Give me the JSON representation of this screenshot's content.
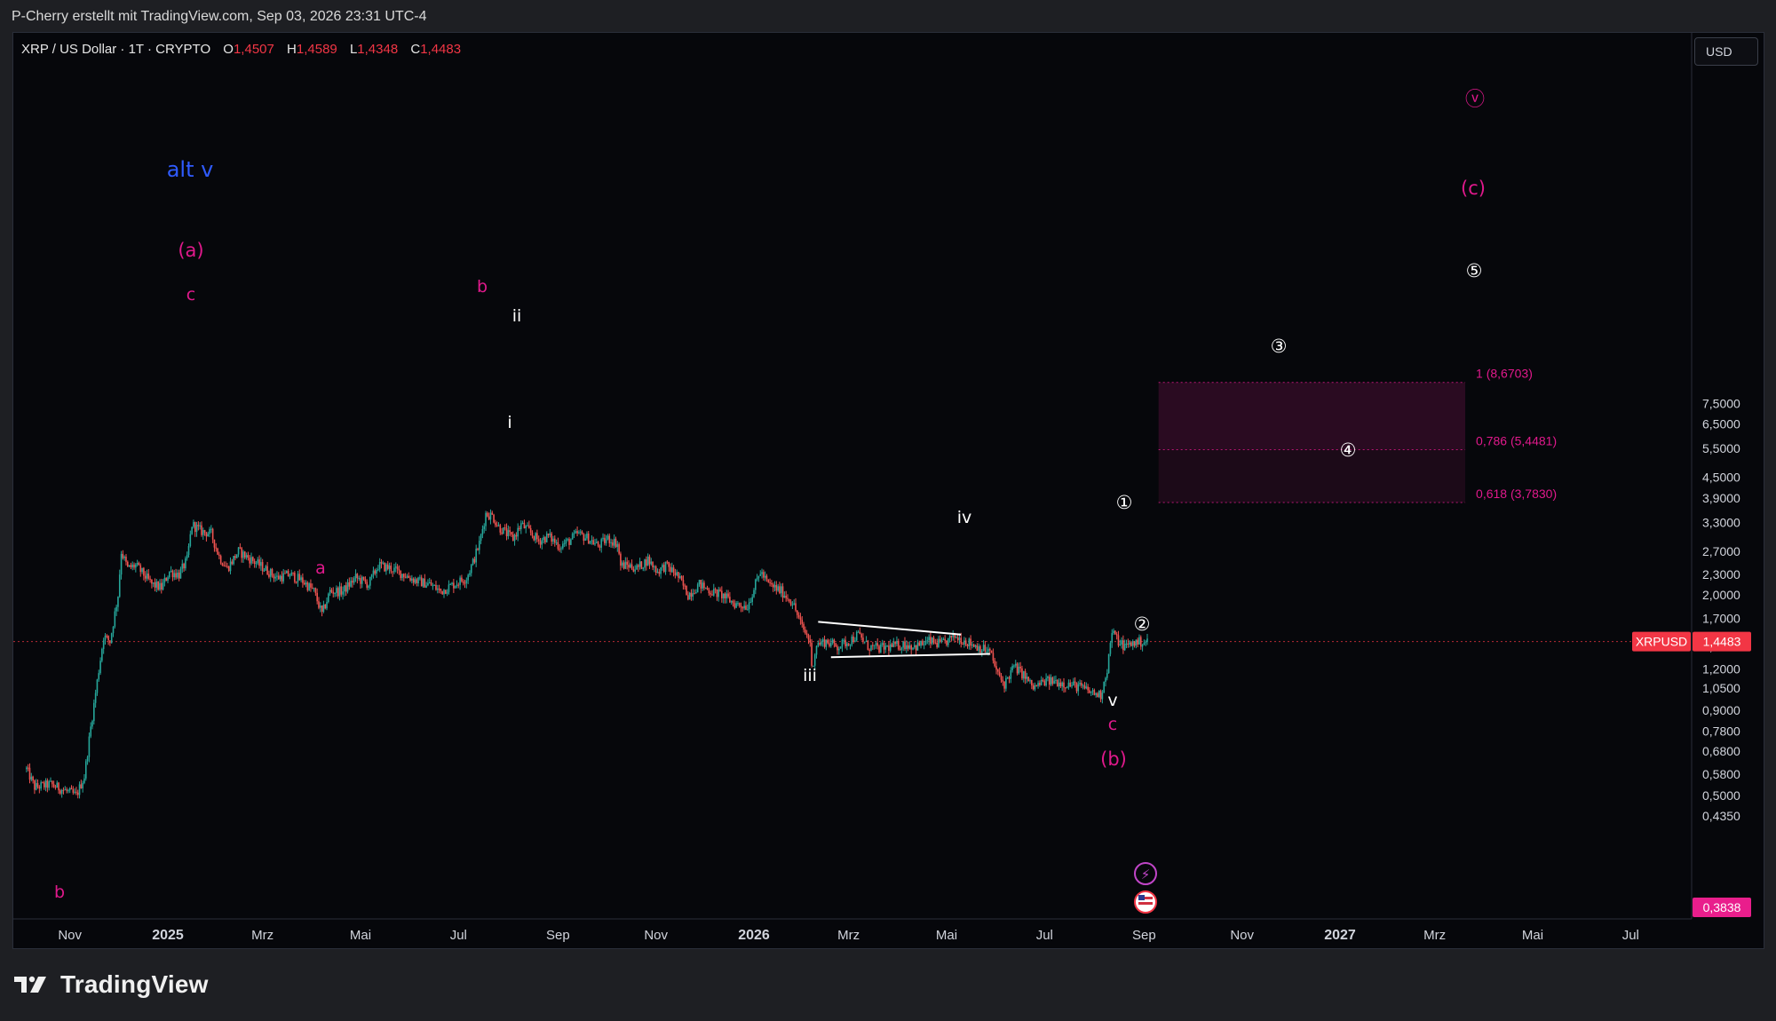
{
  "attribution": "P-Cherry erstellt mit TradingView.com, Sep 03, 2026 23:31 UTC-4",
  "legend": {
    "symbol": "XRP / US Dollar · 1T · CRYPTO",
    "open_label": "O",
    "open": "1,4507",
    "high_label": "H",
    "high": "1,4589",
    "low_label": "L",
    "low": "1,4348",
    "close_label": "C",
    "close": "1,4483"
  },
  "currency_button": "USD",
  "brand": "TradingView",
  "colors": {
    "background": "#06070b",
    "up": "#26a69a",
    "down": "#ef5350",
    "wave_pink": "#e0198c",
    "wave_blue": "#2f5bff",
    "price_tag": "#f23645",
    "zone": "#2b0a20"
  },
  "chart_data": {
    "type": "candlestick",
    "symbol": "XRPUSD",
    "y_scale": "log",
    "y_ticks": [
      "7,5000",
      "6,5000",
      "5,5000",
      "4,5000",
      "3,9000",
      "3,3000",
      "2,7000",
      "2,3000",
      "2,0000",
      "1,7000",
      "1,4000",
      "1,2000",
      "1,0500",
      "0,9000",
      "0,7800",
      "0,6800",
      "0,5800",
      "0,5000",
      "0,4350"
    ],
    "x_ticks": [
      "Nov",
      "2025",
      "Mrz",
      "Mai",
      "Jul",
      "Sep",
      "Nov",
      "2026",
      "Mrz",
      "Mai",
      "Jul",
      "Sep",
      "Nov",
      "2027",
      "Mrz",
      "Mai",
      "Jul"
    ],
    "last_price": {
      "label": "XRPUSD",
      "value": "1,4483"
    },
    "low_marker": "0,3838",
    "price_path": [
      [
        "2024-10-05",
        0.6
      ],
      [
        "2024-10-10",
        0.53
      ],
      [
        "2024-10-20",
        0.54
      ],
      [
        "2024-10-28",
        0.52
      ],
      [
        "2024-11-05",
        0.5
      ],
      [
        "2024-11-10",
        0.57
      ],
      [
        "2024-11-14",
        0.8
      ],
      [
        "2024-11-18",
        1.1
      ],
      [
        "2024-11-22",
        1.5
      ],
      [
        "2024-11-26",
        1.45
      ],
      [
        "2024-12-01",
        2.0
      ],
      [
        "2024-12-03",
        2.7
      ],
      [
        "2024-12-07",
        2.4
      ],
      [
        "2024-12-12",
        2.45
      ],
      [
        "2024-12-17",
        2.3
      ],
      [
        "2024-12-22",
        2.15
      ],
      [
        "2024-12-28",
        2.1
      ],
      [
        "2025-01-02",
        2.35
      ],
      [
        "2025-01-08",
        2.3
      ],
      [
        "2025-01-13",
        2.55
      ],
      [
        "2025-01-16",
        3.25
      ],
      [
        "2025-01-22",
        3.1
      ],
      [
        "2025-01-28",
        3.05
      ],
      [
        "2025-02-02",
        2.6
      ],
      [
        "2025-02-07",
        2.4
      ],
      [
        "2025-02-14",
        2.7
      ],
      [
        "2025-02-22",
        2.55
      ],
      [
        "2025-03-02",
        2.4
      ],
      [
        "2025-03-10",
        2.25
      ],
      [
        "2025-03-18",
        2.3
      ],
      [
        "2025-03-26",
        2.2
      ],
      [
        "2025-04-02",
        2.05
      ],
      [
        "2025-04-07",
        1.75
      ],
      [
        "2025-04-12",
        2.05
      ],
      [
        "2025-04-20",
        2.05
      ],
      [
        "2025-04-28",
        2.25
      ],
      [
        "2025-05-06",
        2.15
      ],
      [
        "2025-05-12",
        2.45
      ],
      [
        "2025-05-20",
        2.4
      ],
      [
        "2025-05-28",
        2.3
      ],
      [
        "2025-06-05",
        2.2
      ],
      [
        "2025-06-13",
        2.15
      ],
      [
        "2025-06-20",
        2.05
      ],
      [
        "2025-06-28",
        2.15
      ],
      [
        "2025-07-06",
        2.25
      ],
      [
        "2025-07-10",
        2.5
      ],
      [
        "2025-07-14",
        2.85
      ],
      [
        "2025-07-18",
        3.5
      ],
      [
        "2025-07-22",
        3.45
      ],
      [
        "2025-07-26",
        3.2
      ],
      [
        "2025-07-31",
        3.05
      ],
      [
        "2025-08-04",
        2.95
      ],
      [
        "2025-08-09",
        3.25
      ],
      [
        "2025-08-14",
        3.1
      ],
      [
        "2025-08-20",
        2.9
      ],
      [
        "2025-08-26",
        3.0
      ],
      [
        "2025-09-02",
        2.8
      ],
      [
        "2025-09-08",
        2.9
      ],
      [
        "2025-09-13",
        3.05
      ],
      [
        "2025-09-20",
        2.95
      ],
      [
        "2025-09-26",
        2.8
      ],
      [
        "2025-10-02",
        2.95
      ],
      [
        "2025-10-08",
        2.85
      ],
      [
        "2025-10-10",
        2.45
      ],
      [
        "2025-10-15",
        2.45
      ],
      [
        "2025-10-20",
        2.4
      ],
      [
        "2025-10-27",
        2.55
      ],
      [
        "2025-11-02",
        2.35
      ],
      [
        "2025-11-07",
        2.45
      ],
      [
        "2025-11-14",
        2.3
      ],
      [
        "2025-11-21",
        2.0
      ],
      [
        "2025-11-28",
        2.15
      ],
      [
        "2025-12-05",
        2.05
      ],
      [
        "2025-12-12",
        2.0
      ],
      [
        "2025-12-20",
        1.88
      ],
      [
        "2025-12-28",
        1.85
      ],
      [
        "2026-01-05",
        2.35
      ],
      [
        "2026-01-10",
        2.15
      ],
      [
        "2026-01-18",
        2.05
      ],
      [
        "2026-01-25",
        1.9
      ],
      [
        "2026-01-31",
        1.6
      ],
      [
        "2026-02-05",
        1.45
      ],
      [
        "2026-02-06",
        1.2
      ],
      [
        "2026-02-09",
        1.42
      ],
      [
        "2026-02-15",
        1.45
      ],
      [
        "2026-02-22",
        1.4
      ],
      [
        "2026-03-01",
        1.45
      ],
      [
        "2026-03-07",
        1.52
      ],
      [
        "2026-03-13",
        1.4
      ],
      [
        "2026-03-20",
        1.38
      ],
      [
        "2026-03-28",
        1.4
      ],
      [
        "2026-04-05",
        1.42
      ],
      [
        "2026-04-12",
        1.4
      ],
      [
        "2026-04-20",
        1.45
      ],
      [
        "2026-04-28",
        1.42
      ],
      [
        "2026-05-06",
        1.5
      ],
      [
        "2026-05-12",
        1.46
      ],
      [
        "2026-05-20",
        1.4
      ],
      [
        "2026-05-28",
        1.35
      ],
      [
        "2026-06-02",
        1.15
      ],
      [
        "2026-06-06",
        1.08
      ],
      [
        "2026-06-12",
        1.22
      ],
      [
        "2026-06-18",
        1.15
      ],
      [
        "2026-06-24",
        1.05
      ],
      [
        "2026-07-01",
        1.1
      ],
      [
        "2026-07-08",
        1.1
      ],
      [
        "2026-07-15",
        1.08
      ],
      [
        "2026-07-23",
        1.06
      ],
      [
        "2026-07-30",
        1.02
      ],
      [
        "2026-08-05",
        1.0
      ],
      [
        "2026-08-09",
        1.2
      ],
      [
        "2026-08-12",
        1.55
      ],
      [
        "2026-08-16",
        1.45
      ],
      [
        "2026-08-20",
        1.4
      ],
      [
        "2026-08-26",
        1.44
      ],
      [
        "2026-09-03",
        1.4483
      ]
    ],
    "wave_labels": [
      {
        "text": "b",
        "color": "pink"
      },
      {
        "text": "c",
        "color": "pink"
      },
      {
        "text": "(a)",
        "color": "pink"
      },
      {
        "text": "alt v",
        "color": "blue"
      },
      {
        "text": "a",
        "color": "pink"
      },
      {
        "text": "b",
        "color": "pink"
      },
      {
        "text": "i",
        "color": "white"
      },
      {
        "text": "ii",
        "color": "white"
      },
      {
        "text": "iii",
        "color": "white"
      },
      {
        "text": "iv",
        "color": "white"
      },
      {
        "text": "v",
        "color": "white"
      },
      {
        "text": "c",
        "color": "pink"
      },
      {
        "text": "(b)",
        "color": "pink"
      },
      {
        "text": "(c)",
        "color": "pink"
      },
      {
        "text": "①",
        "color": "white"
      },
      {
        "text": "②",
        "color": "white"
      },
      {
        "text": "③",
        "color": "white"
      },
      {
        "text": "④",
        "color": "white"
      },
      {
        "text": "⑤",
        "color": "white"
      },
      {
        "text": "ⓥ",
        "color": "pink"
      }
    ],
    "fib_levels": [
      {
        "label": "1 (8,6703)",
        "ratio": 1,
        "price": 8.6703
      },
      {
        "label": "0,786 (5,4481)",
        "ratio": 0.786,
        "price": 5.4481
      },
      {
        "label": "0,618 (3,7830)",
        "ratio": 0.618,
        "price": 3.783
      }
    ],
    "triangle": {
      "upper": [
        [
          "2026-02-10",
          1.66
        ],
        [
          "2026-05-10",
          1.52
        ]
      ],
      "lower": [
        [
          "2026-02-18",
          1.3
        ],
        [
          "2026-05-28",
          1.33
        ]
      ]
    },
    "grid": false,
    "legend_position": "top-left"
  }
}
